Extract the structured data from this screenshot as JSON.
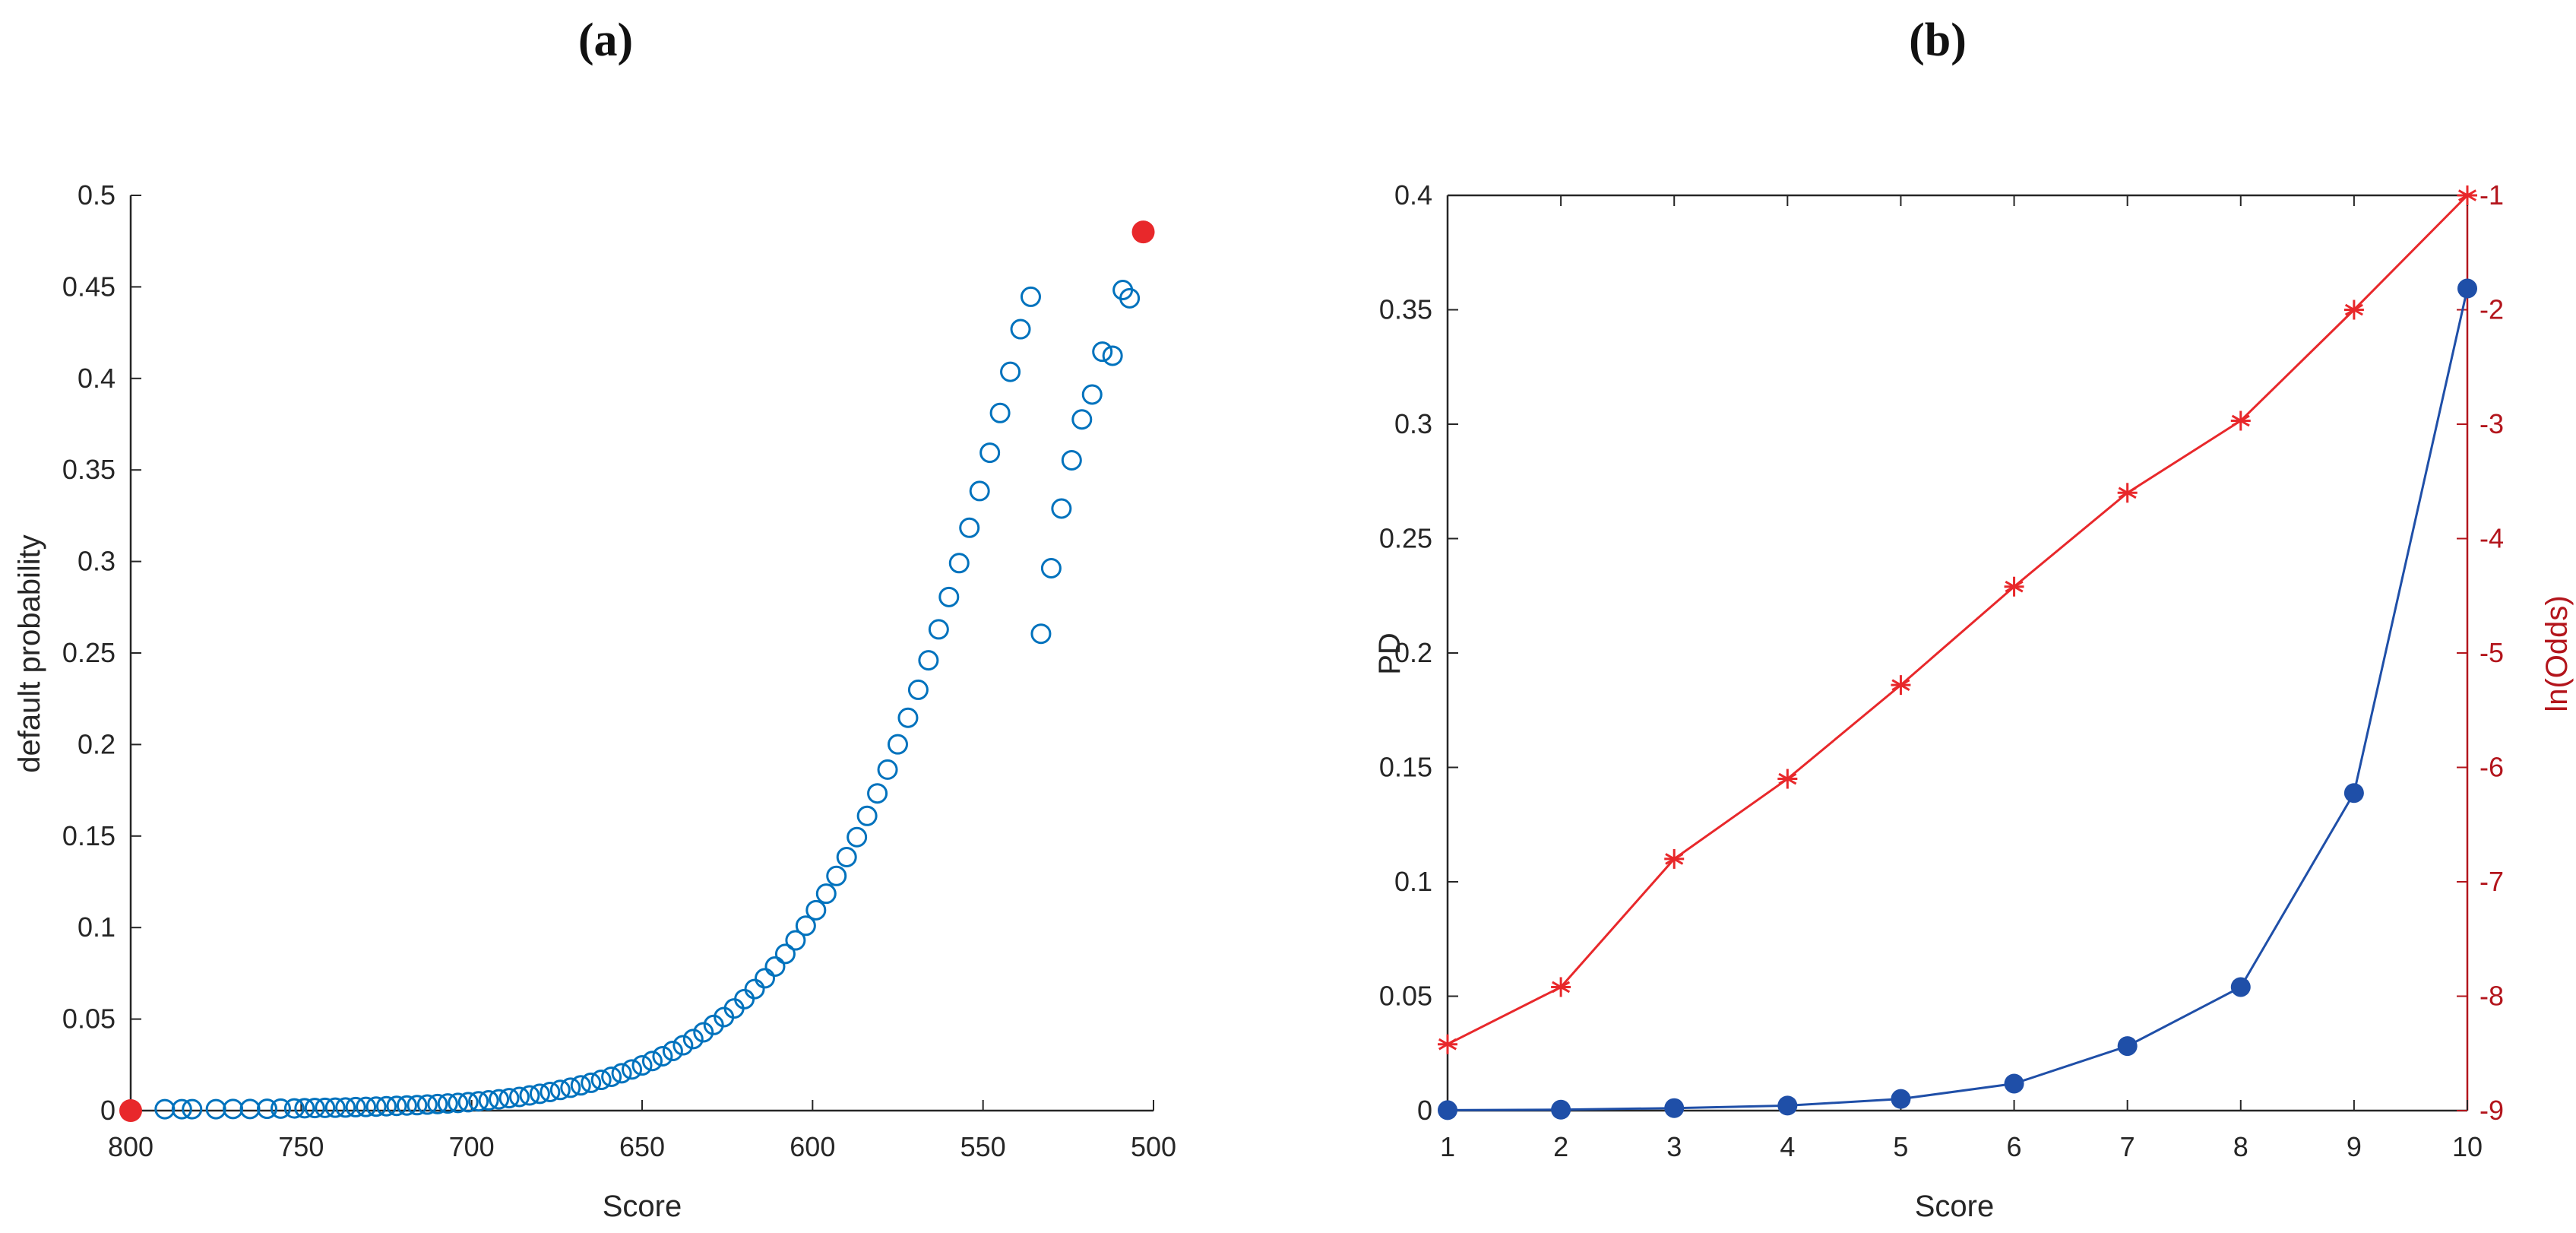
{
  "panels": {
    "a_label": "(a)",
    "b_label": "(b)"
  },
  "chart_data": [
    {
      "type": "scatter",
      "xlabel": "Score",
      "ylabel": "default probability",
      "xlim": [
        800,
        500
      ],
      "ylim": [
        0,
        0.5
      ],
      "x_reversed": true,
      "xticks": [
        800,
        750,
        700,
        650,
        600,
        550,
        500
      ],
      "yticks": [
        0,
        0.05,
        0.1,
        0.15,
        0.2,
        0.25,
        0.3,
        0.35,
        0.4,
        0.45,
        0.5
      ],
      "series": [
        {
          "marker": "open-circle",
          "color": "#0072bd",
          "x": [
            790,
            785,
            782,
            775,
            770,
            765,
            760,
            756,
            752,
            749,
            746,
            743,
            740,
            737,
            734,
            731,
            728,
            725,
            722,
            719,
            716,
            713,
            710,
            707,
            704,
            701,
            698,
            695,
            692,
            689,
            686,
            683,
            680,
            677,
            674,
            671,
            668,
            665,
            662,
            659,
            656,
            653,
            650,
            647,
            644,
            641,
            638,
            635,
            632,
            629,
            626,
            623,
            620,
            617,
            614,
            611,
            608,
            605,
            602,
            599,
            596,
            593,
            590,
            587,
            584,
            581,
            578,
            575,
            572,
            569,
            566,
            563,
            560,
            557,
            554,
            551,
            548,
            545,
            542,
            539,
            536,
            533,
            530,
            527,
            524,
            521,
            518,
            515,
            512,
            509,
            507
          ],
          "y": [
            0.0008,
            0.0008,
            0.0008,
            0.0008,
            0.0009,
            0.0009,
            0.001,
            0.0011,
            0.0012,
            0.0013,
            0.0014,
            0.0015,
            0.0016,
            0.0017,
            0.0019,
            0.002,
            0.0022,
            0.0024,
            0.0026,
            0.0028,
            0.003,
            0.0033,
            0.0036,
            0.0039,
            0.0042,
            0.0046,
            0.0051,
            0.0056,
            0.0062,
            0.0068,
            0.0075,
            0.0083,
            0.0092,
            0.0102,
            0.0113,
            0.0125,
            0.0138,
            0.0152,
            0.0168,
            0.0185,
            0.0204,
            0.0225,
            0.0247,
            0.0271,
            0.0297,
            0.0326,
            0.0357,
            0.0391,
            0.0428,
            0.0468,
            0.0511,
            0.0558,
            0.0609,
            0.0664,
            0.0723,
            0.0787,
            0.0856,
            0.093,
            0.101,
            0.1095,
            0.1185,
            0.1282,
            0.1385,
            0.1494,
            0.161,
            0.1733,
            0.1863,
            0.2001,
            0.2146,
            0.2299,
            0.246,
            0.2629,
            0.2806,
            0.2991,
            0.3184,
            0.3385,
            0.3594,
            0.3811,
            0.4036,
            0.4269,
            0.4446,
            0.2605,
            0.2963,
            0.3289,
            0.3553,
            0.3776,
            0.3912,
            0.4146,
            0.4124,
            0.4483,
            0.4438
          ]
        },
        {
          "marker": "filled-circle",
          "color": "#e8282b",
          "x": [
            800,
            503
          ],
          "y": [
            0.0,
            0.48
          ]
        }
      ]
    },
    {
      "type": "line",
      "xlabel": "Score",
      "ylabel": "PD",
      "y2label": "ln(Odds)",
      "xlim": [
        1,
        10
      ],
      "ylim": [
        0,
        0.4
      ],
      "y2lim": [
        -9,
        -1
      ],
      "xticks": [
        1,
        2,
        3,
        4,
        5,
        6,
        7,
        8,
        9,
        10
      ],
      "yticks": [
        0,
        0.05,
        0.1,
        0.15,
        0.2,
        0.25,
        0.3,
        0.35,
        0.4
      ],
      "y2ticks": [
        -9,
        -8,
        -7,
        -6,
        -5,
        -4,
        -3,
        -2,
        -1
      ],
      "x": [
        1,
        2,
        3,
        4,
        5,
        6,
        7,
        8,
        9,
        10
      ],
      "series": [
        {
          "axis": "left",
          "marker": "filled-circle",
          "color": "#1f4fa8",
          "values": [
            0.0002,
            0.0004,
            0.0011,
            0.0022,
            0.0051,
            0.0118,
            0.0282,
            0.054,
            0.1388,
            0.3593
          ]
        },
        {
          "axis": "right",
          "marker": "asterisk",
          "color": "#e8282b",
          "values": [
            -8.42,
            -7.92,
            -6.8,
            -6.1,
            -5.28,
            -4.42,
            -3.6,
            -2.97,
            -2.0,
            -1.0
          ]
        }
      ]
    }
  ]
}
